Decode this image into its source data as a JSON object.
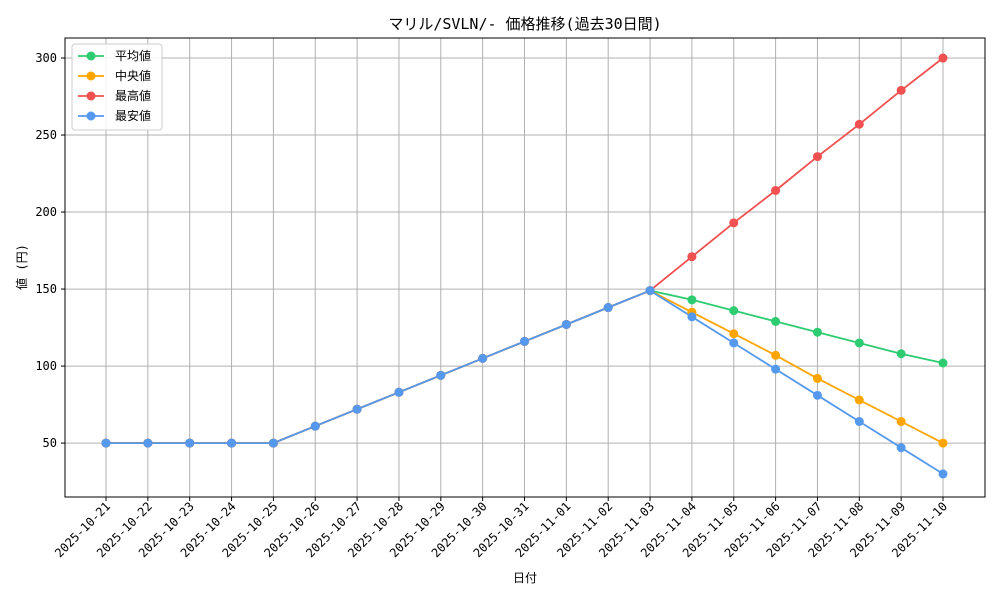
{
  "chart_data": {
    "type": "line",
    "title": "マリル/SVLN/- 価格推移(過去30日間)",
    "xlabel": "日付",
    "ylabel": "値 (円)",
    "categories": [
      "2025-10-21",
      "2025-10-22",
      "2025-10-23",
      "2025-10-24",
      "2025-10-25",
      "2025-10-26",
      "2025-10-27",
      "2025-10-28",
      "2025-10-29",
      "2025-10-30",
      "2025-10-31",
      "2025-11-01",
      "2025-11-02",
      "2025-11-03",
      "2025-11-04",
      "2025-11-05",
      "2025-11-06",
      "2025-11-07",
      "2025-11-08",
      "2025-11-09",
      "2025-11-10"
    ],
    "ylim": [
      15,
      313
    ],
    "yticks": [
      50,
      100,
      150,
      200,
      250,
      300
    ],
    "grid": true,
    "legend_position": "top-left",
    "series": [
      {
        "name": "平均値",
        "color": "#2ecc71",
        "values": [
          50,
          50,
          50,
          50,
          50,
          61,
          72,
          83,
          94,
          105,
          116,
          127,
          138,
          149,
          143,
          136,
          129,
          122,
          115,
          108,
          102
        ]
      },
      {
        "name": "中央値",
        "color": "#ffa500",
        "values": [
          50,
          50,
          50,
          50,
          50,
          61,
          72,
          83,
          94,
          105,
          116,
          127,
          138,
          149,
          135,
          121,
          107,
          92,
          78,
          64,
          50
        ]
      },
      {
        "name": "最高値",
        "color": "#f05050",
        "values": [
          50,
          50,
          50,
          50,
          50,
          61,
          72,
          83,
          94,
          105,
          116,
          127,
          138,
          149,
          171,
          193,
          214,
          236,
          257,
          279,
          300
        ]
      },
      {
        "name": "最安値",
        "color": "#5599ee",
        "values": [
          50,
          50,
          50,
          50,
          50,
          61,
          72,
          83,
          94,
          105,
          116,
          127,
          138,
          149,
          132,
          115,
          98,
          81,
          64,
          47,
          30
        ]
      }
    ]
  }
}
